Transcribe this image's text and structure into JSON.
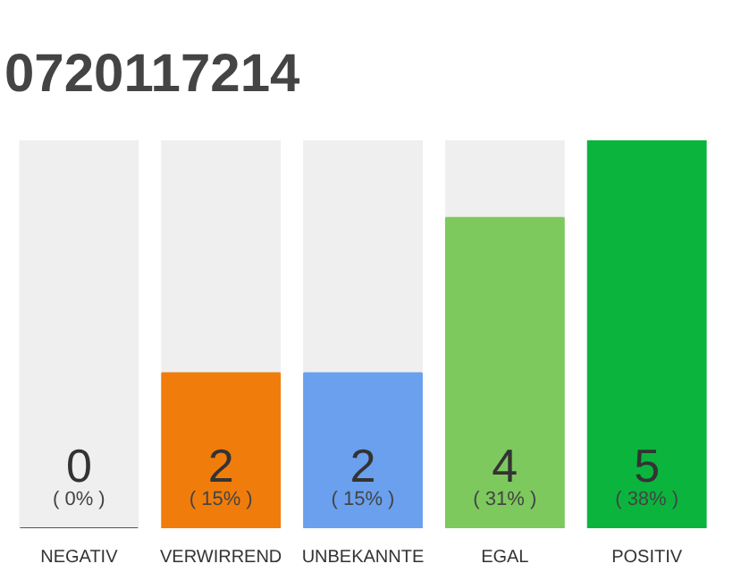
{
  "chart_data": {
    "type": "bar",
    "title": "0720117214",
    "categories": [
      "NEGATIV",
      "VERWIRREND",
      "UNBEKANNTE",
      "EGAL",
      "POSITIV"
    ],
    "values": [
      0,
      2,
      2,
      4,
      5
    ],
    "colors": [
      "#555555",
      "#f07d0b",
      "#6aa0ee",
      "#7dc95e",
      "#0bb53d"
    ],
    "data_labels": true,
    "annotations": [
      "( 0% )",
      "( 15% )",
      "( 15% )",
      "( 31% )",
      "( 38% )"
    ],
    "ylim": [
      0,
      5
    ],
    "tick_labels": "x"
  }
}
